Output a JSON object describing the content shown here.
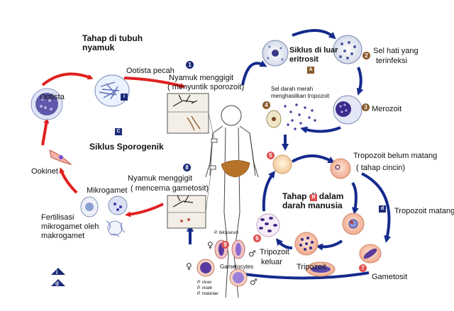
{
  "labels": {
    "mosquito_stage_title": "Tahap di tubuh nyamuk",
    "oocyst_rupture": "Ootista pecah",
    "mosquito_bites_sporozoite_1": "Nyamuk menggigit",
    "mosquito_bites_sporozoite_2": "( menyuntik sporozoit)",
    "exo_erythrocytic_cycle_1": "Siklus di luar",
    "exo_erythrocytic_cycle_2": "eritrosit",
    "infected_liver_cell_1": "Sel hati yang",
    "infected_liver_cell_2": "terinfeksi",
    "rbc_produces_trophozoite_1": "Sel darah merah",
    "rbc_produces_trophozoite_2": "menghasilkan tropozoit",
    "merozoite": "Merozoit",
    "oocyst": "Ootista",
    "sporogonic_cycle": "Siklus Sporogenik",
    "ookinete": "Ookinet",
    "mosquito_bites_gametocyte_1": "Nyamuk menggigit",
    "mosquito_bites_gametocyte_2": "( mencerna gametosit)",
    "microgamete": "Mikrogamet",
    "fertilization": "Fertilisasi mikrogamet oleh makrogamet",
    "immature_trophozoite_1": "Tropozoit belum matang",
    "immature_trophozoite_2": "( tahap cincin)",
    "human_blood_stage": "Tahap di dalam darah manusia",
    "mature_trophozoite": "Tropozoit matang",
    "released_tripozoit_1": "Tripozoit",
    "released_tripozoit_2": "keluar",
    "tripozoit": "Tripozoit",
    "gametocyte": "Gametosit",
    "gametocytes_en": "Gametocytes",
    "p_falciparum": "P. falciparum",
    "p_vivax": "P. vivax",
    "p_ovale": "P. ovale",
    "p_malariae": "P. malariae"
  },
  "stage_markers": {
    "m1": "1",
    "m2": "2",
    "m3": "3",
    "m4": "4",
    "m5": "5",
    "m6": "6",
    "m7": "7",
    "m8": "8",
    "m9": "9"
  },
  "letter_markers": {
    "i": "i",
    "a": "A",
    "b": "B",
    "c": "C",
    "d": "d"
  },
  "legend": {
    "item_i": "i",
    "item_d": "d"
  },
  "colors": {
    "arrow_red": "#e02020",
    "arrow_blue": "#142a8c",
    "marker_brown": "#8a5a2a",
    "marker_blue": "#1b2a78",
    "parasite_purple": "#3a2a8a",
    "liver": "#b8732a"
  }
}
